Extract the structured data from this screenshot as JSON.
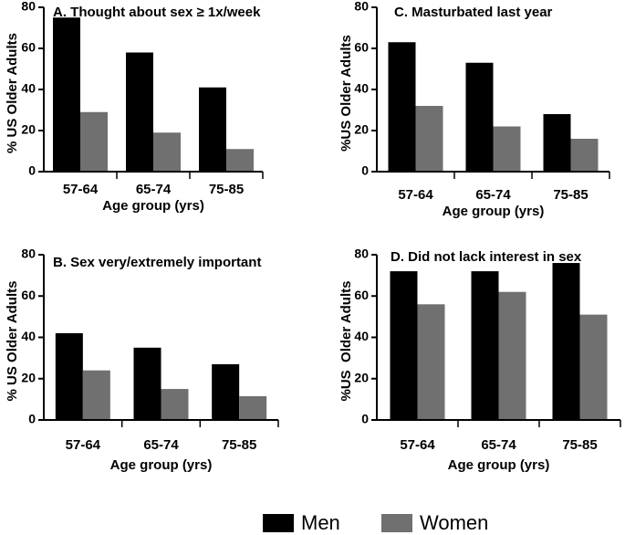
{
  "colors": {
    "men": "#000000",
    "women": "#707070"
  },
  "legend": {
    "men": "Men",
    "women": "Women"
  },
  "chart_data": [
    {
      "id": "A",
      "type": "bar",
      "title": "A. Thought about sex ≥ 1x/week",
      "categories": [
        "57-64",
        "65-74",
        "75-85"
      ],
      "series": [
        {
          "name": "Men",
          "values": [
            75,
            58,
            41
          ]
        },
        {
          "name": "Women",
          "values": [
            29,
            19,
            11
          ]
        }
      ],
      "xlabel": "Age group (yrs)",
      "ylabel": "% US Older Adults",
      "ylim": [
        0,
        80
      ],
      "yticks": [
        0,
        20,
        40,
        60,
        80
      ]
    },
    {
      "id": "C",
      "type": "bar",
      "title": "C. Masturbated last year",
      "categories": [
        "57-64",
        "65-74",
        "75-85"
      ],
      "series": [
        {
          "name": "Men",
          "values": [
            63,
            53,
            28
          ]
        },
        {
          "name": "Women",
          "values": [
            32,
            22,
            16
          ]
        }
      ],
      "xlabel": "Age group (yrs)",
      "ylabel": "%US Older Adults",
      "ylim": [
        0,
        80
      ],
      "yticks": [
        0,
        20,
        40,
        60,
        80
      ]
    },
    {
      "id": "B",
      "type": "bar",
      "title": "B. Sex very/extremely important",
      "categories": [
        "57-64",
        "65-74",
        "75-85"
      ],
      "series": [
        {
          "name": "Men",
          "values": [
            42,
            35,
            27
          ]
        },
        {
          "name": "Women",
          "values": [
            24,
            15,
            11.5
          ]
        }
      ],
      "xlabel": "Age group (yrs)",
      "ylabel": "% US Older Adults",
      "ylim": [
        0,
        80
      ],
      "yticks": [
        0,
        20,
        40,
        60,
        80
      ]
    },
    {
      "id": "D",
      "type": "bar",
      "title": "D. Did not lack interest in sex",
      "categories": [
        "57-64",
        "65-74",
        "75-85"
      ],
      "series": [
        {
          "name": "Men",
          "values": [
            72,
            72,
            76
          ]
        },
        {
          "name": "Women",
          "values": [
            56,
            62,
            51
          ]
        }
      ],
      "xlabel": "Age group (yrs)",
      "ylabel": "%US  Older Adults",
      "ylim": [
        0,
        80
      ],
      "yticks": [
        0,
        20,
        40,
        60,
        80
      ]
    }
  ]
}
